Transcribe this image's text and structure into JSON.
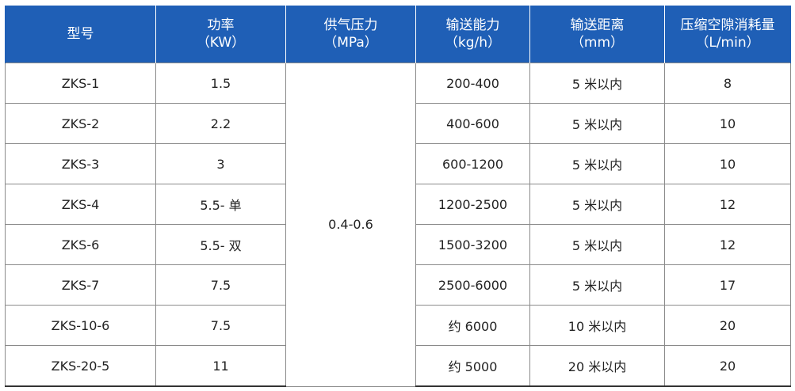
{
  "headers": [
    {
      "line1": "型号",
      "line2": ""
    },
    {
      "line1": "功率",
      "line2": "（KW）"
    },
    {
      "line1": "供气压力",
      "line2": "（MPa）"
    },
    {
      "line1": "输送能力",
      "line2": "（kg/h）"
    },
    {
      "line1": "输送距离",
      "line2": "（mm）"
    },
    {
      "line1": "压缩空隙消耗量",
      "line2": "（L/min）"
    }
  ],
  "supply_pressure": "0.4-0.6",
  "rows": [
    {
      "model": "ZKS-1",
      "power": "1.5",
      "capacity": "200-400",
      "distance": "5 米以内",
      "air": "8"
    },
    {
      "model": "ZKS-2",
      "power": "2.2",
      "capacity": "400-600",
      "distance": "5 米以内",
      "air": "10"
    },
    {
      "model": "ZKS-3",
      "power": "3",
      "capacity": "600-1200",
      "distance": "5 米以内",
      "air": "10"
    },
    {
      "model": "ZKS-4",
      "power": "5.5- 单",
      "capacity": "1200-2500",
      "distance": "5 米以内",
      "air": "12"
    },
    {
      "model": "ZKS-6",
      "power": "5.5- 双",
      "capacity": "1500-3200",
      "distance": "5 米以内",
      "air": "12"
    },
    {
      "model": "ZKS-7",
      "power": "7.5",
      "capacity": "2500-6000",
      "distance": "5 米以内",
      "air": "17"
    },
    {
      "model": "ZKS-10-6",
      "power": "7.5",
      "capacity": "约 6000",
      "distance": "10 米以内",
      "air": "20"
    },
    {
      "model": "ZKS-20-5",
      "power": "11",
      "capacity": "约 5000",
      "distance": "20 米以内",
      "air": "20"
    }
  ]
}
